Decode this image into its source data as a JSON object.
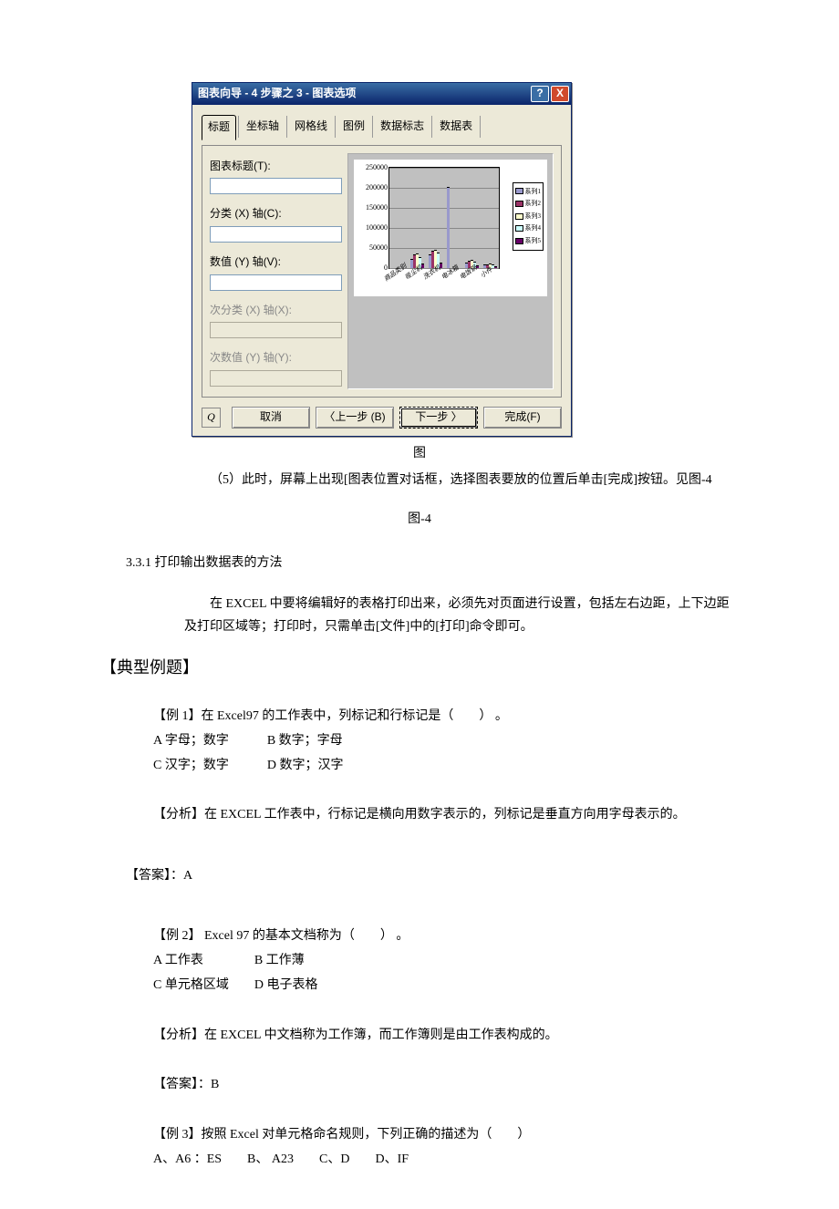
{
  "dialog": {
    "title": "图表向导 - 4 步骤之 3 - 图表选项",
    "help_btn": "?",
    "close_btn": "X",
    "tabs": [
      "标题",
      "坐标轴",
      "网格线",
      "图例",
      "数据标志",
      "数据表"
    ],
    "active_tab_index": 0,
    "form": {
      "chart_title_label": "图表标题(T):",
      "cat_x_label": "分类 (X) 轴(C):",
      "val_y_label": "数值 (Y) 轴(V):",
      "sub_cat_label": "次分类 (X) 轴(X):",
      "sub_val_label": "次数值 (Y) 轴(Y):"
    },
    "buttons": {
      "q": "Q",
      "cancel": "取消",
      "back": "〈上一步 (B)",
      "next": "下一步 〉",
      "finish": "完成(F)"
    }
  },
  "chart": {
    "background": "#c0c0c0",
    "ylim": [
      0,
      250000
    ],
    "ytick_step": 50000,
    "categories": [
      "商品类别",
      "吸尘机",
      "洗衣机",
      "电冰箱",
      "电饭锅",
      "小件"
    ],
    "series": [
      {
        "name": "系列1",
        "color": "#9999cc",
        "values": [
          0,
          20000,
          30000,
          200000,
          10000,
          5000
        ]
      },
      {
        "name": "系列2",
        "color": "#993366",
        "values": [
          0,
          30000,
          40000,
          0,
          15000,
          7000
        ]
      },
      {
        "name": "系列3",
        "color": "#ffffcc",
        "values": [
          0,
          33000,
          42000,
          0,
          17000,
          8000
        ]
      },
      {
        "name": "系列4",
        "color": "#ccffff",
        "values": [
          0,
          25000,
          35000,
          0,
          12000,
          6000
        ]
      },
      {
        "name": "系列5",
        "color": "#660066",
        "values": [
          0,
          8000,
          10000,
          0,
          4000,
          2000
        ]
      }
    ],
    "legend_pos": "right"
  },
  "text": {
    "annot_tu": "图",
    "p5": "（5）此时，屏幕上出现[图表位置对话框，选择图表要放的位置后单击[完成]按钮。见图-4",
    "fig4": "图-4",
    "sec331": "3.3.1 打印输出数据表的方法",
    "p_print": "在 EXCEL 中要将编辑好的表格打印出来，必须先对页面进行设置，包括左右边距，上下边距及打印区域等；打印时，只需单击[文件]中的[打印]命令即可。",
    "h_examples": "【典型例题】",
    "ex1_q": "【例 1】在 Excel97 的工作表中，列标记和行标记是（　　） 。",
    "ex1_a": "A 字母；数字　　　B 数字；字母",
    "ex1_c": "C 汉字；数字　　　D 数字；汉字",
    "ex1_ana": "【分析】在 EXCEL 工作表中，行标记是横向用数字表示的，列标记是垂直方向用字母表示的。",
    "ex1_ans": "【答案】：A",
    "ex2_q": "【例 2】 Excel 97 的基本文档称为（　　） 。",
    "ex2_a": "A 工作表　　　　B 工作薄",
    "ex2_c": "C 单元格区域　　D 电子表格",
    "ex2_ana": "【分析】在 EXCEL 中文档称为工作簿，而工作簿则是由工作表构成的。",
    "ex2_ans": "【答案】：B",
    "ex3_q": "【例 3】按照 Excel 对单元格命名规则，下列正确的描述为（　　）",
    "ex3_a": "A、A6 ：ES　　B、 A23　　C、D　　D、IF"
  }
}
